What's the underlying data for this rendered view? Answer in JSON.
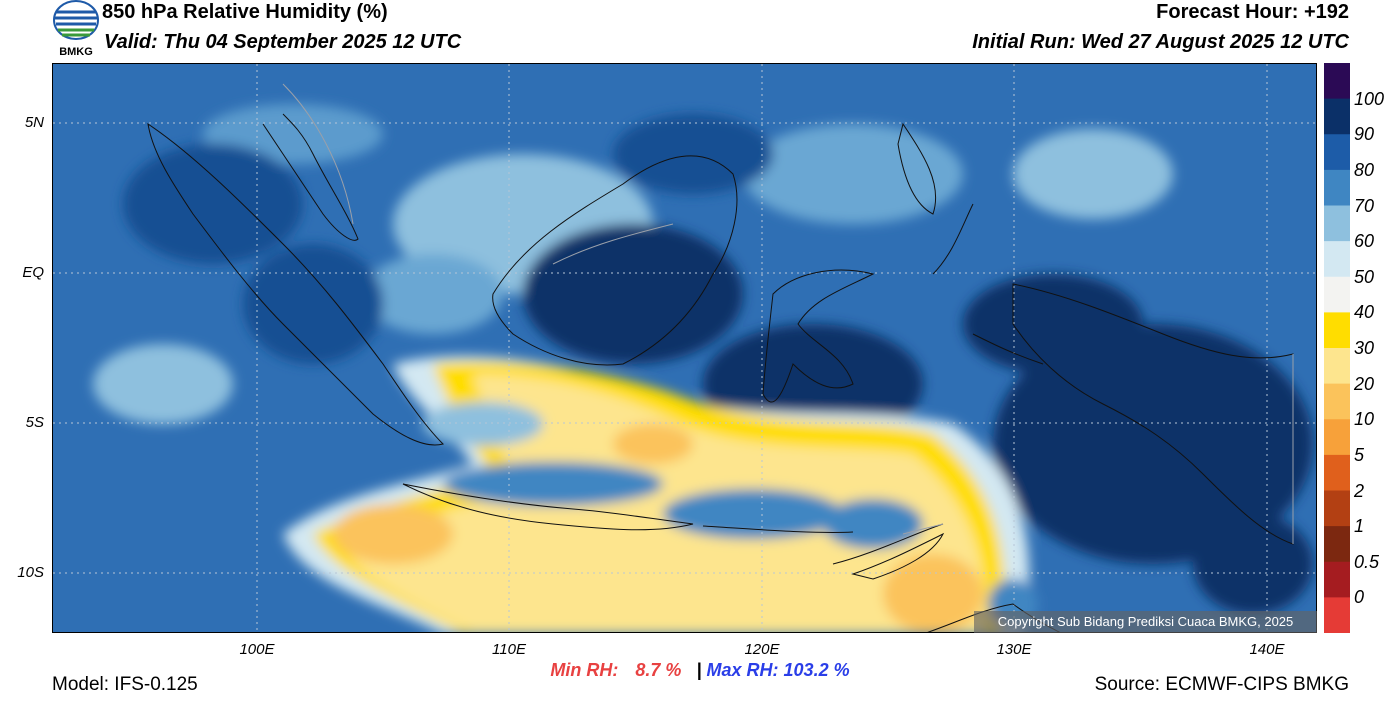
{
  "header": {
    "title": "850 hPa Relative Humidity (%)",
    "valid": "Valid: Thu 04 September 2025 12 UTC",
    "forecast_hour": "Forecast Hour: +192",
    "initial_run": "Initial Run: Wed 27 August 2025 12 UTC",
    "logo_text": "BMKG"
  },
  "axes": {
    "lat_labels": [
      "5N",
      "EQ",
      "5S",
      "10S"
    ],
    "lon_labels": [
      "100E",
      "110E",
      "120E",
      "130E",
      "140E"
    ]
  },
  "colorbar": {
    "labels": [
      "100",
      "90",
      "80",
      "70",
      "60",
      "50",
      "40",
      "30",
      "20",
      "10",
      "5",
      "2",
      "1",
      "0.5",
      "0"
    ],
    "colors": [
      "#2b0a55",
      "#0b3068",
      "#1d5ca8",
      "#3f86c2",
      "#8ec0de",
      "#d3e8f2",
      "#f3f3f1",
      "#ffdd00",
      "#fde58e",
      "#fbc35b",
      "#f7a13a",
      "#e0601c",
      "#b34013",
      "#7c2810",
      "#a51c20",
      "#e53b36"
    ]
  },
  "stats": {
    "min_label": "Min RH:",
    "min_value": "8.7 %",
    "separator": "|",
    "max_label": "Max RH:",
    "max_value": "103.2 %"
  },
  "footer": {
    "model": "Model: IFS-0.125",
    "source": "Source: ECMWF-CIPS BMKG",
    "copyright": "Copyright Sub Bidang Prediksi Cuaca BMKG, 2025"
  }
}
